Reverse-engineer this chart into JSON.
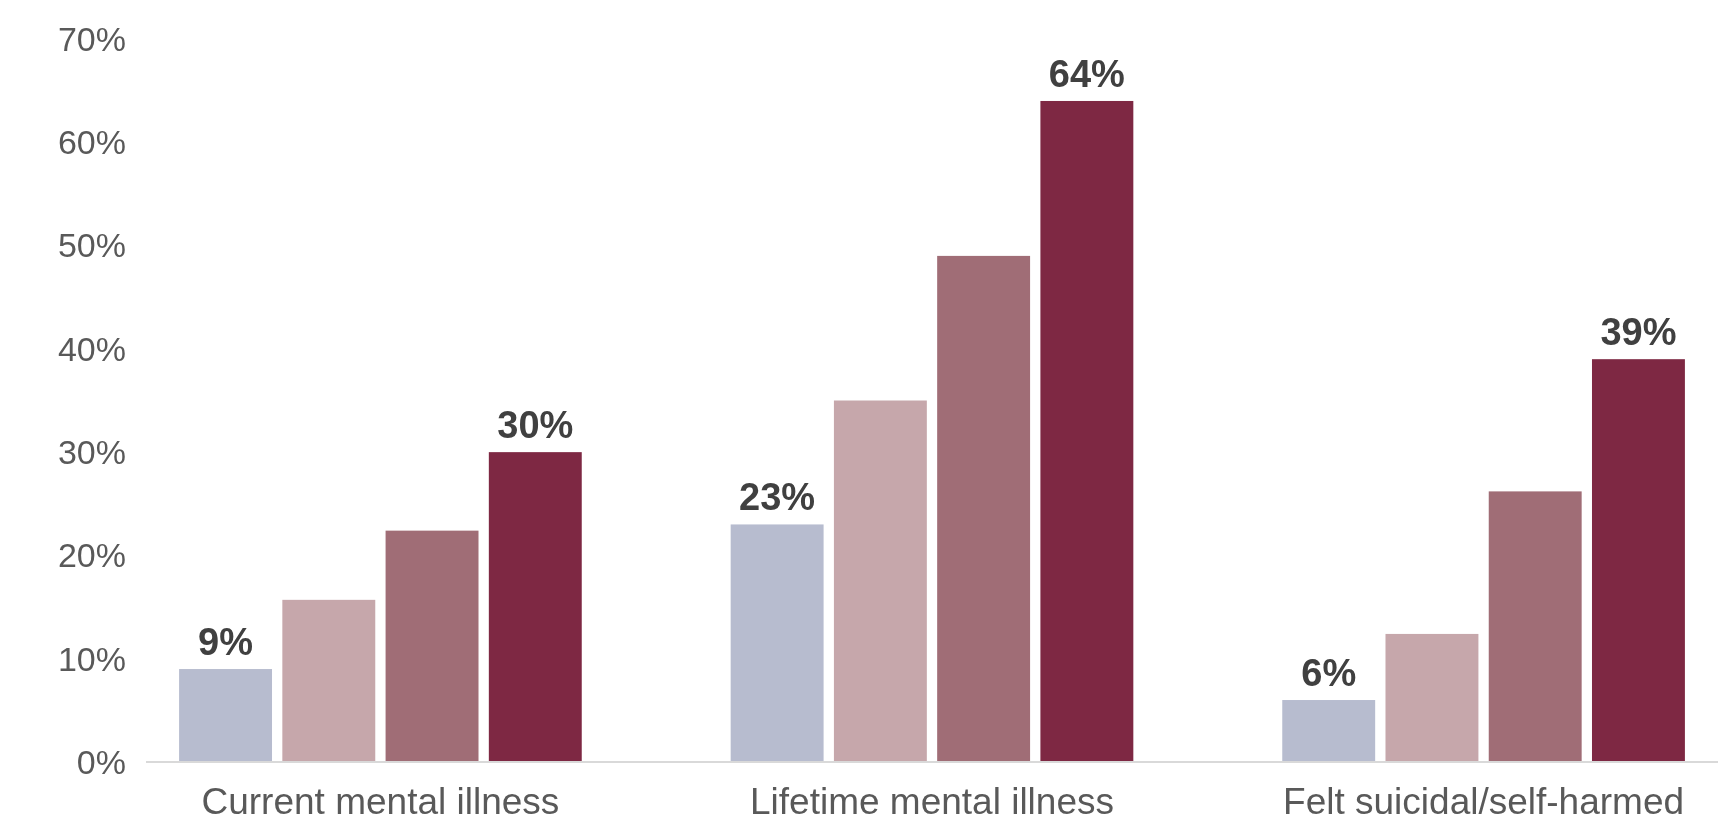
{
  "chart_data": {
    "type": "bar",
    "categories": [
      "Current mental illness",
      "Lifetime mental illness",
      "Felt suicidal/self-harmed"
    ],
    "series": [
      {
        "color": "#b7bccf",
        "values": [
          9,
          23,
          6
        ],
        "value_labels": [
          "9%",
          "23%",
          "6%"
        ]
      },
      {
        "color": "#c6a7ab",
        "values": [
          15.7,
          35,
          12.4
        ]
      },
      {
        "color": "#a06d76",
        "values": [
          22.4,
          49,
          26.2
        ]
      },
      {
        "color": "#7e2843",
        "values": [
          30,
          64,
          39
        ],
        "value_labels": [
          "30%",
          "64%",
          "39%"
        ]
      }
    ],
    "ylim": [
      0,
      70
    ],
    "yticks": [
      {
        "value": 0,
        "label": "0%"
      },
      {
        "value": 10,
        "label": "10%"
      },
      {
        "value": 20,
        "label": "20%"
      },
      {
        "value": 30,
        "label": "30%"
      },
      {
        "value": 40,
        "label": "40%"
      },
      {
        "value": 50,
        "label": "50%"
      },
      {
        "value": 60,
        "label": "60%"
      },
      {
        "value": 70,
        "label": "70%"
      }
    ],
    "grid": false
  }
}
